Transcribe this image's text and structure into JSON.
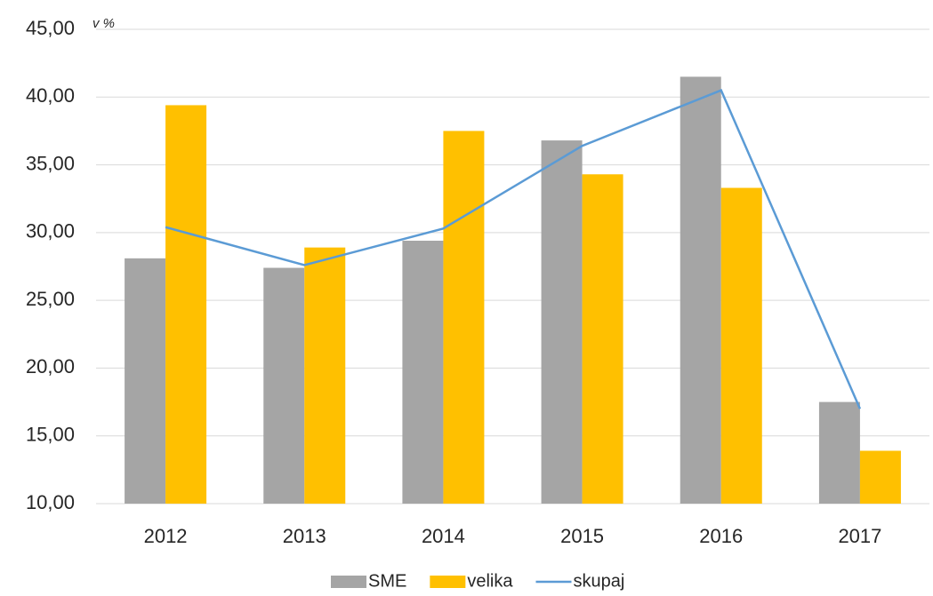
{
  "chart_data": {
    "type": "bar_line",
    "annotation": "v %",
    "categories": [
      "2012",
      "2013",
      "2014",
      "2015",
      "2016",
      "2017"
    ],
    "series": [
      {
        "name": "SME",
        "type": "bar",
        "color": "#a5a5a5",
        "values": [
          28.1,
          27.4,
          29.4,
          36.8,
          41.5,
          17.5
        ]
      },
      {
        "name": "velika",
        "type": "bar",
        "color": "#ffc000",
        "values": [
          39.4,
          28.9,
          37.5,
          34.3,
          33.3,
          13.9
        ]
      },
      {
        "name": "skupaj",
        "type": "line",
        "color": "#5b9bd5",
        "values": [
          30.4,
          27.6,
          30.3,
          36.4,
          40.5,
          17.0
        ]
      }
    ],
    "ylim": [
      10,
      45
    ],
    "yticks": [
      {
        "value": 10,
        "label": "10,00"
      },
      {
        "value": 15,
        "label": "15,00"
      },
      {
        "value": 20,
        "label": "20,00"
      },
      {
        "value": 25,
        "label": "25,00"
      },
      {
        "value": 30,
        "label": "30,00"
      },
      {
        "value": 35,
        "label": "35,00"
      },
      {
        "value": 40,
        "label": "40,00"
      },
      {
        "value": 45,
        "label": "45,00"
      }
    ],
    "grid": true,
    "legend": "bottom"
  }
}
